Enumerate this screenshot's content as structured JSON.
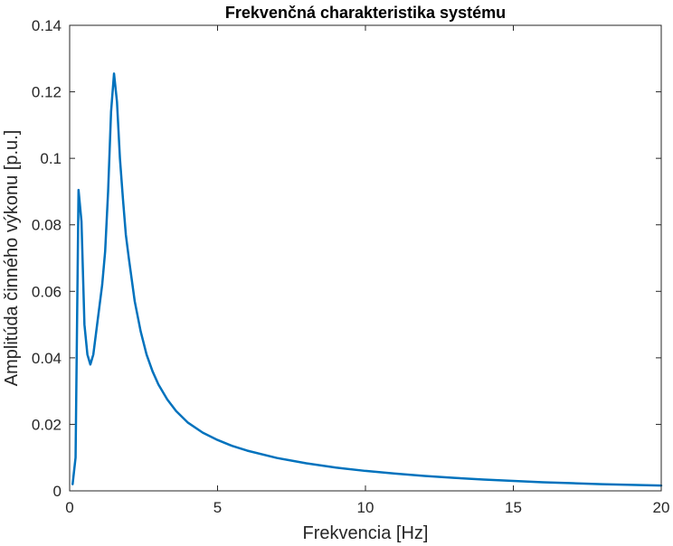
{
  "chart_data": {
    "type": "line",
    "title": "Frekvenčná charakteristika systému",
    "xlabel": "Frekvencia [Hz]",
    "ylabel": "Amplitúda činného výkonu [p.u.]",
    "xlim": [
      0,
      20
    ],
    "ylim": [
      0,
      0.14
    ],
    "xticks": [
      0,
      5,
      10,
      15,
      20
    ],
    "xtick_labels": [
      "0",
      "5",
      "10",
      "15",
      "20"
    ],
    "yticks": [
      0,
      0.02,
      0.04,
      0.06,
      0.08,
      0.1,
      0.12,
      0.14
    ],
    "ytick_labels": [
      "0",
      "0.02",
      "0.04",
      "0.06",
      "0.08",
      "0.1",
      "0.12",
      "0.14"
    ],
    "grid": false,
    "line_color": "#0072BD",
    "series": [
      {
        "x": [
          0.1,
          0.2,
          0.3,
          0.4,
          0.5,
          0.6,
          0.7,
          0.8,
          0.9,
          1.0,
          1.1,
          1.2,
          1.3,
          1.4,
          1.5,
          1.6,
          1.7,
          1.8,
          1.9,
          2.0,
          2.2,
          2.4,
          2.6,
          2.8,
          3.0,
          3.3,
          3.6,
          4.0,
          4.5,
          5.0,
          5.5,
          6.0,
          7.0,
          8.0,
          9.0,
          10.0,
          11.0,
          12.0,
          13.0,
          14.0,
          15.0,
          16.0,
          17.0,
          18.0,
          19.0,
          20.0
        ],
        "y": [
          0.002,
          0.01,
          0.0905,
          0.081,
          0.05,
          0.041,
          0.038,
          0.041,
          0.048,
          0.055,
          0.062,
          0.072,
          0.09,
          0.114,
          0.1255,
          0.117,
          0.1,
          0.088,
          0.077,
          0.07,
          0.057,
          0.048,
          0.041,
          0.036,
          0.032,
          0.0275,
          0.024,
          0.0205,
          0.0175,
          0.0153,
          0.0135,
          0.0121,
          0.0099,
          0.0083,
          0.007,
          0.006,
          0.0052,
          0.0045,
          0.0039,
          0.0034,
          0.003,
          0.0026,
          0.0023,
          0.002,
          0.0018,
          0.0016
        ]
      }
    ]
  }
}
